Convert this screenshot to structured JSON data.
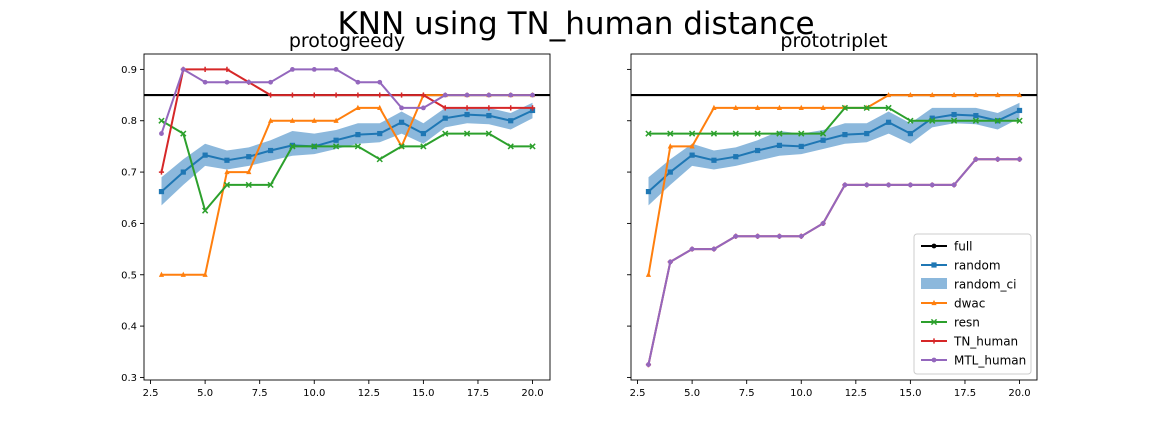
{
  "suptitle": "KNN using TN_human distance",
  "colors": {
    "full": "#000000",
    "random": "#1f77b4",
    "random_ci": "#8cb8dc",
    "dwac": "#ff7f0e",
    "resn": "#2ca02c",
    "TN_human": "#d62728",
    "MTL_human": "#9467bd"
  },
  "chart_data": [
    {
      "type": "line",
      "title": "protogreedy",
      "xlabel": "",
      "ylabel": "",
      "xlim": [
        2.2,
        20.8
      ],
      "ylim": [
        0.295,
        0.93
      ],
      "xticks": [
        2.5,
        5.0,
        7.5,
        10.0,
        12.5,
        15.0,
        17.5,
        20.0
      ],
      "xtick_labels": [
        "2.5",
        "5.0",
        "7.5",
        "10.0",
        "12.5",
        "15.0",
        "17.5",
        "20.0"
      ],
      "yticks": [
        0.3,
        0.4,
        0.5,
        0.6,
        0.7,
        0.8,
        0.9
      ],
      "ytick_labels": [
        "0.3",
        "0.4",
        "0.5",
        "0.6",
        "0.7",
        "0.8",
        "0.9"
      ],
      "grid": false,
      "legend": false,
      "hline": {
        "name": "full",
        "y": 0.85
      },
      "band": {
        "name": "random_ci",
        "x": [
          3,
          4,
          5,
          6,
          7,
          8,
          9,
          10,
          11,
          12,
          13,
          14,
          15,
          16,
          17,
          18,
          19,
          20
        ],
        "lower": [
          0.635,
          0.675,
          0.712,
          0.705,
          0.712,
          0.722,
          0.732,
          0.735,
          0.745,
          0.755,
          0.758,
          0.775,
          0.755,
          0.787,
          0.795,
          0.793,
          0.783,
          0.805
        ],
        "upper": [
          0.69,
          0.725,
          0.755,
          0.742,
          0.748,
          0.762,
          0.78,
          0.775,
          0.782,
          0.795,
          0.795,
          0.818,
          0.795,
          0.825,
          0.825,
          0.825,
          0.815,
          0.835
        ]
      },
      "series": [
        {
          "name": "random",
          "marker": "square",
          "x": [
            3,
            4,
            5,
            6,
            7,
            8,
            9,
            10,
            11,
            12,
            13,
            14,
            15,
            16,
            17,
            18,
            19,
            20
          ],
          "y": [
            0.662,
            0.7,
            0.733,
            0.723,
            0.73,
            0.742,
            0.752,
            0.75,
            0.762,
            0.773,
            0.775,
            0.797,
            0.775,
            0.805,
            0.812,
            0.81,
            0.8,
            0.82
          ]
        },
        {
          "name": "dwac",
          "marker": "triangle",
          "x": [
            3,
            4,
            5,
            6,
            7,
            8,
            9,
            10,
            11,
            12,
            13,
            14,
            15,
            16,
            17,
            18,
            19,
            20
          ],
          "y": [
            0.5,
            0.5,
            0.5,
            0.7,
            0.7,
            0.8,
            0.8,
            0.8,
            0.8,
            0.825,
            0.825,
            0.75,
            0.85,
            0.85,
            0.85,
            0.85,
            0.85,
            0.85
          ]
        },
        {
          "name": "resn",
          "marker": "x",
          "x": [
            3,
            4,
            5,
            6,
            7,
            8,
            9,
            10,
            11,
            12,
            13,
            14,
            15,
            16,
            17,
            18,
            19,
            20
          ],
          "y": [
            0.8,
            0.775,
            0.625,
            0.675,
            0.675,
            0.675,
            0.75,
            0.75,
            0.75,
            0.75,
            0.725,
            0.75,
            0.75,
            0.775,
            0.775,
            0.775,
            0.75,
            0.75
          ]
        },
        {
          "name": "TN_human",
          "marker": "plus",
          "x": [
            3,
            4,
            5,
            6,
            7,
            8,
            9,
            10,
            11,
            12,
            13,
            14,
            15,
            16,
            17,
            18,
            19,
            20
          ],
          "y": [
            0.7,
            0.9,
            0.9,
            0.9,
            0.875,
            0.85,
            0.85,
            0.85,
            0.85,
            0.85,
            0.85,
            0.85,
            0.85,
            0.825,
            0.825,
            0.825,
            0.825,
            0.825
          ]
        },
        {
          "name": "MTL_human",
          "marker": "star",
          "x": [
            3,
            4,
            5,
            6,
            7,
            8,
            9,
            10,
            11,
            12,
            13,
            14,
            15,
            16,
            17,
            18,
            19,
            20
          ],
          "y": [
            0.775,
            0.9,
            0.875,
            0.875,
            0.875,
            0.875,
            0.9,
            0.9,
            0.9,
            0.875,
            0.875,
            0.825,
            0.825,
            0.85,
            0.85,
            0.85,
            0.85,
            0.85
          ]
        }
      ]
    },
    {
      "type": "line",
      "title": "prototriplet",
      "xlabel": "",
      "ylabel": "",
      "xlim": [
        2.2,
        20.8
      ],
      "ylim": [
        0.295,
        0.93
      ],
      "xticks": [
        2.5,
        5.0,
        7.5,
        10.0,
        12.5,
        15.0,
        17.5,
        20.0
      ],
      "xtick_labels": [
        "2.5",
        "5.0",
        "7.5",
        "10.0",
        "12.5",
        "15.0",
        "17.5",
        "20.0"
      ],
      "yticks": [
        0.3,
        0.4,
        0.5,
        0.6,
        0.7,
        0.8,
        0.9
      ],
      "ytick_labels": [
        "",
        "",
        "",
        "",
        "",
        "",
        ""
      ],
      "grid": false,
      "legend": "lower-right",
      "hline": {
        "name": "full",
        "y": 0.85
      },
      "band": {
        "name": "random_ci",
        "x": [
          3,
          4,
          5,
          6,
          7,
          8,
          9,
          10,
          11,
          12,
          13,
          14,
          15,
          16,
          17,
          18,
          19,
          20
        ],
        "lower": [
          0.635,
          0.675,
          0.712,
          0.705,
          0.712,
          0.722,
          0.732,
          0.735,
          0.745,
          0.755,
          0.758,
          0.775,
          0.755,
          0.787,
          0.795,
          0.793,
          0.783,
          0.805
        ],
        "upper": [
          0.69,
          0.725,
          0.755,
          0.742,
          0.748,
          0.762,
          0.78,
          0.775,
          0.782,
          0.795,
          0.795,
          0.818,
          0.795,
          0.825,
          0.825,
          0.825,
          0.815,
          0.835
        ]
      },
      "series": [
        {
          "name": "random",
          "marker": "square",
          "x": [
            3,
            4,
            5,
            6,
            7,
            8,
            9,
            10,
            11,
            12,
            13,
            14,
            15,
            16,
            17,
            18,
            19,
            20
          ],
          "y": [
            0.662,
            0.7,
            0.733,
            0.723,
            0.73,
            0.742,
            0.752,
            0.75,
            0.762,
            0.773,
            0.775,
            0.797,
            0.775,
            0.805,
            0.812,
            0.81,
            0.8,
            0.82
          ]
        },
        {
          "name": "dwac",
          "marker": "triangle",
          "x": [
            3,
            4,
            5,
            6,
            7,
            8,
            9,
            10,
            11,
            12,
            13,
            14,
            15,
            16,
            17,
            18,
            19,
            20
          ],
          "y": [
            0.5,
            0.75,
            0.75,
            0.825,
            0.825,
            0.825,
            0.825,
            0.825,
            0.825,
            0.825,
            0.825,
            0.85,
            0.85,
            0.85,
            0.85,
            0.85,
            0.85,
            0.85
          ]
        },
        {
          "name": "resn",
          "marker": "x",
          "x": [
            3,
            4,
            5,
            6,
            7,
            8,
            9,
            10,
            11,
            12,
            13,
            14,
            15,
            16,
            17,
            18,
            19,
            20
          ],
          "y": [
            0.775,
            0.775,
            0.775,
            0.775,
            0.775,
            0.775,
            0.775,
            0.775,
            0.775,
            0.825,
            0.825,
            0.825,
            0.8,
            0.8,
            0.8,
            0.8,
            0.8,
            0.8
          ]
        },
        {
          "name": "TN_human",
          "marker": "plus",
          "x": [
            3,
            4,
            5,
            6,
            7,
            8,
            9,
            10,
            11,
            12,
            13,
            14,
            15,
            16,
            17,
            18,
            19,
            20
          ],
          "y": [
            0.325,
            0.525,
            0.55,
            0.55,
            0.575,
            0.575,
            0.575,
            0.575,
            0.6,
            0.675,
            0.675,
            0.675,
            0.675,
            0.675,
            0.675,
            0.725,
            0.725,
            0.725
          ]
        },
        {
          "name": "MTL_human",
          "marker": "star",
          "x": [
            3,
            4,
            5,
            6,
            7,
            8,
            9,
            10,
            11,
            12,
            13,
            14,
            15,
            16,
            17,
            18,
            19,
            20
          ],
          "y": [
            0.325,
            0.525,
            0.55,
            0.55,
            0.575,
            0.575,
            0.575,
            0.575,
            0.6,
            0.675,
            0.675,
            0.675,
            0.675,
            0.675,
            0.675,
            0.725,
            0.725,
            0.725
          ]
        }
      ]
    }
  ],
  "legend_entries": [
    {
      "key": "full",
      "label": "full",
      "kind": "line"
    },
    {
      "key": "random",
      "label": "random",
      "kind": "line"
    },
    {
      "key": "random_ci",
      "label": "random_ci",
      "kind": "patch"
    },
    {
      "key": "dwac",
      "label": "dwac",
      "kind": "line"
    },
    {
      "key": "resn",
      "label": "resn",
      "kind": "line"
    },
    {
      "key": "TN_human",
      "label": "TN_human",
      "kind": "line"
    },
    {
      "key": "MTL_human",
      "label": "MTL_human",
      "kind": "line"
    }
  ]
}
